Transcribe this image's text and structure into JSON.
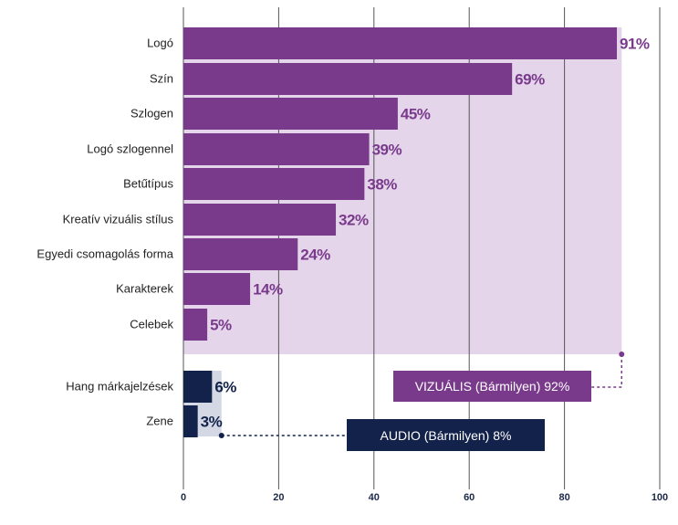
{
  "colors": {
    "visual": "#7a3a8c",
    "visual_text": "#7a3a8c",
    "visual_band": "#e4d5ea",
    "audio": "#13224a",
    "audio_text": "#13224a",
    "audio_band": "#d3d8e4",
    "grid": "#555555"
  },
  "chart_data": {
    "type": "bar",
    "orientation": "horizontal",
    "xlim": [
      0,
      100
    ],
    "x_ticks": [
      "0",
      "20",
      "40",
      "60",
      "80",
      "100"
    ],
    "grid": true,
    "groups": [
      {
        "name": "VIZUÁLIS",
        "total_value": 92,
        "categories": [
          "Logó",
          "Szín",
          "Szlogen",
          "Logó szlogennel",
          "Betűtípus",
          "Kreatív vizuális stílus",
          "Egyedi csomagolás forma",
          "Karakterek",
          "Celebek"
        ],
        "values": [
          91,
          69,
          45,
          39,
          38,
          32,
          24,
          14,
          5
        ],
        "value_labels": [
          "91%",
          "69%",
          "45%",
          "39%",
          "38%",
          "32%",
          "24%",
          "14%",
          "5%"
        ]
      },
      {
        "name": "AUDIO",
        "total_value": 8,
        "categories": [
          "Hang márkajelzések",
          "Zene"
        ],
        "values": [
          6,
          3
        ],
        "value_labels": [
          "6%",
          "3%"
        ]
      }
    ],
    "annotations": [
      {
        "text": "VIZUÁLIS (Bármilyen) 92%",
        "value": 92,
        "group": "VIZUÁLIS"
      },
      {
        "text": "AUDIO (Bármilyen) 8%",
        "value": 8,
        "group": "AUDIO"
      }
    ]
  }
}
